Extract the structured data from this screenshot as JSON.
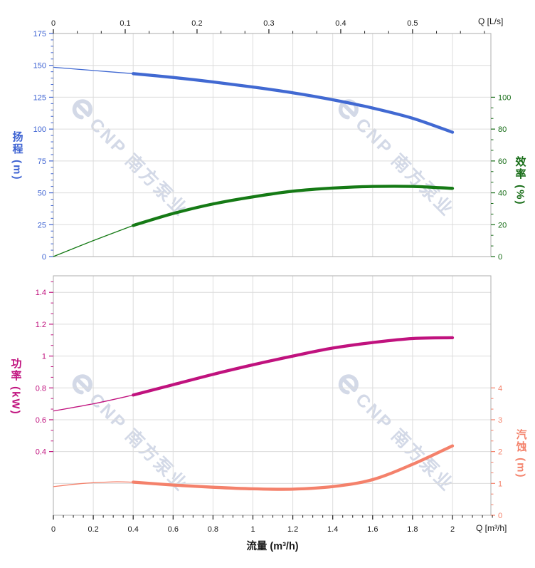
{
  "watermark": {
    "text": "CNP 南方泵业",
    "logo_icon": "cnp-swirl",
    "color": "#d3d9e7"
  },
  "labels": {
    "top_axis_unit": "Q [L/s]",
    "bottom_axis_unit": "Q [m³/h]"
  },
  "chart_data": {
    "type": "line",
    "title": "",
    "description": "Pump performance curves: head, efficiency (top panel), power, NPSH (bottom panel) vs flow",
    "x_bottom": {
      "label": "流量 (m³/h)",
      "unit_label": "Q [m³/h]",
      "ticks": [
        0,
        0.2,
        0.4,
        0.6,
        0.8,
        1,
        1.2,
        1.4,
        1.6,
        1.8,
        2
      ],
      "minor_step": 0.05,
      "minor_min": 0,
      "minor_max": 2.19,
      "color": "#1a1a1a"
    },
    "x_top": {
      "unit_label": "Q [L/s]",
      "ticks": [
        0,
        0.1,
        0.2,
        0.3,
        0.4,
        0.5
      ],
      "minor_step": 0.033333,
      "minor_min": 0,
      "minor_max": 0.608,
      "to_m3h": 3.6,
      "color": "#1a1a1a"
    },
    "y_axes": {
      "head": {
        "label": "扬程 (m)",
        "color": "#3e63d2",
        "side": "left",
        "panel": 0,
        "range": [
          0,
          175
        ],
        "ticks": [
          0,
          25,
          50,
          75,
          100,
          125,
          150,
          175
        ],
        "minor_step": 5,
        "minor_min": 0,
        "minor_max": 175
      },
      "efficiency": {
        "label": "效率 (%)",
        "color": "#166c16",
        "side": "right",
        "panel": 0,
        "range": [
          0,
          140
        ],
        "ticks": [
          0,
          20,
          40,
          60,
          80,
          100
        ],
        "minor_step": 6.66667,
        "minor_min": 0,
        "minor_max": 100
      },
      "power": {
        "label": "功率 (kW)",
        "color": "#c0127e",
        "side": "left",
        "panel": 1,
        "range": [
          0,
          1.504
        ],
        "ticks": [
          0.4,
          0.6,
          0.8,
          1,
          1.2,
          1.4
        ],
        "minor_step": 0.066667,
        "minor_min": 0.4,
        "minor_max": 1.5
      },
      "npsh": {
        "label": "汽蚀 (m)",
        "color": "#f4826b",
        "side": "right",
        "panel": 1,
        "range": [
          0,
          7.52
        ],
        "ticks": [
          0,
          1,
          2,
          3,
          4
        ],
        "minor_step": 0.33333,
        "minor_min": 0,
        "minor_max": 4
      }
    },
    "series": [
      {
        "name": "head",
        "label": "扬程",
        "axis": "head",
        "color": "#4169d2",
        "thick_from": 0.4,
        "q": [
          0,
          0.2,
          0.4,
          0.6,
          0.8,
          1.0,
          1.2,
          1.4,
          1.6,
          1.8,
          2.0
        ],
        "values": [
          148.5,
          146,
          143.5,
          140.5,
          137,
          133,
          128.5,
          123,
          116.5,
          108.5,
          97.5
        ]
      },
      {
        "name": "efficiency",
        "label": "效率",
        "axis": "efficiency",
        "color": "#157a15",
        "thick_from": 0.4,
        "q": [
          0,
          0.2,
          0.4,
          0.6,
          0.8,
          1.0,
          1.2,
          1.4,
          1.6,
          1.8,
          2.0
        ],
        "values": [
          0,
          10,
          19.5,
          27,
          33,
          37.5,
          41,
          43,
          44,
          44,
          42.8
        ]
      },
      {
        "name": "power",
        "label": "功率",
        "axis": "power",
        "color": "#c0127e",
        "thick_from": 0.4,
        "q": [
          0,
          0.2,
          0.4,
          0.6,
          0.8,
          1.0,
          1.2,
          1.4,
          1.6,
          1.8,
          2.0
        ],
        "values": [
          0.655,
          0.7,
          0.755,
          0.82,
          0.885,
          0.945,
          1.0,
          1.05,
          1.085,
          1.11,
          1.115
        ]
      },
      {
        "name": "npsh",
        "label": "汽蚀",
        "axis": "npsh",
        "color": "#f4816b",
        "thick_from": 0.4,
        "q": [
          0,
          0.15,
          0.3,
          0.4,
          0.6,
          0.8,
          1.0,
          1.2,
          1.4,
          1.6,
          1.8,
          2.0
        ],
        "values": [
          0.9,
          1.0,
          1.05,
          1.04,
          0.95,
          0.88,
          0.83,
          0.82,
          0.9,
          1.12,
          1.6,
          2.18
        ]
      }
    ],
    "layout_hints": {
      "grid": true,
      "legend": "none",
      "panels": 2
    }
  }
}
